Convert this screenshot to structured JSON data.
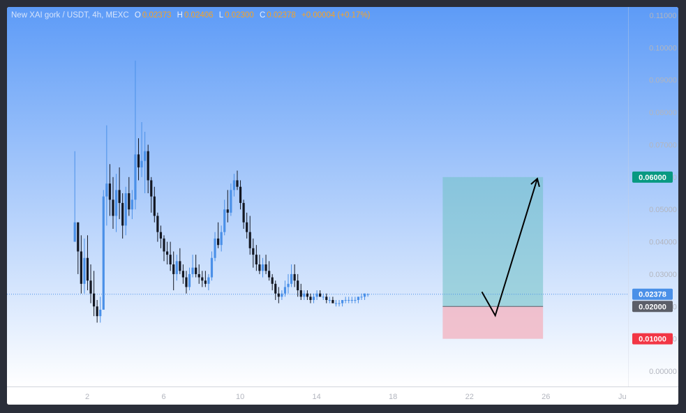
{
  "legend": {
    "symbol": "New XAI gork / USDT, 4h, MEXC",
    "o_label": "O",
    "o_value": "0.02373",
    "h_label": "H",
    "h_value": "0.02406",
    "l_label": "L",
    "l_value": "0.02300",
    "c_label": "C",
    "c_value": "0.02378",
    "change": "+0.00004 (+0.17%)"
  },
  "colors": {
    "background_top": "#5d9bf7",
    "background_bottom": "#ffffff",
    "up_candle": "#4a90e8",
    "down_candle": "#131722",
    "profit_zone": "#6fc1c4",
    "loss_zone": "#f2b8c6",
    "target_tag": "#089981",
    "entry_tag": "#5b5e68",
    "stop_tag": "#f23645",
    "last_price_tag": "#4a90e8",
    "dotted_line": "#4a90e8"
  },
  "chart_data": {
    "type": "candlestick",
    "title": "New XAI gork / USDT, 4h, MEXC",
    "y_ticks": [
      "0.11000",
      "0.10000",
      "0.09000",
      "0.08000",
      "0.07000",
      "0.06000",
      "0.05000",
      "0.04000",
      "0.03000",
      "0.02000",
      "0.01000",
      "0.00000"
    ],
    "ylim": [
      0.0,
      0.11
    ],
    "x_ticks": [
      {
        "label": "2",
        "day": 2
      },
      {
        "label": "6",
        "day": 6
      },
      {
        "label": "10",
        "day": 10
      },
      {
        "label": "14",
        "day": 14
      },
      {
        "label": "18",
        "day": 18
      },
      {
        "label": "22",
        "day": 22
      },
      {
        "label": "26",
        "day": 26
      },
      {
        "label": "Ju",
        "day": 30
      }
    ],
    "xlim": [
      -2.2,
      30.3
    ],
    "candle_hours": 4,
    "candles_start_day": 1.35,
    "candles": [
      [
        0.04,
        0.068,
        0.04,
        0.046
      ],
      [
        0.046,
        0.046,
        0.03,
        0.037
      ],
      [
        0.037,
        0.042,
        0.024,
        0.027
      ],
      [
        0.027,
        0.041,
        0.024,
        0.035
      ],
      [
        0.035,
        0.042,
        0.025,
        0.028
      ],
      [
        0.028,
        0.033,
        0.021,
        0.024
      ],
      [
        0.024,
        0.031,
        0.017,
        0.02
      ],
      [
        0.02,
        0.022,
        0.015,
        0.017
      ],
      [
        0.017,
        0.023,
        0.015,
        0.019
      ],
      [
        0.019,
        0.056,
        0.019,
        0.054
      ],
      [
        0.054,
        0.076,
        0.045,
        0.058
      ],
      [
        0.058,
        0.064,
        0.048,
        0.053
      ],
      [
        0.053,
        0.06,
        0.044,
        0.048
      ],
      [
        0.048,
        0.061,
        0.043,
        0.056
      ],
      [
        0.056,
        0.063,
        0.047,
        0.052
      ],
      [
        0.052,
        0.055,
        0.041,
        0.045
      ],
      [
        0.045,
        0.057,
        0.042,
        0.055
      ],
      [
        0.055,
        0.06,
        0.048,
        0.05
      ],
      [
        0.05,
        0.056,
        0.047,
        0.053
      ],
      [
        0.053,
        0.096,
        0.05,
        0.067
      ],
      [
        0.067,
        0.072,
        0.059,
        0.063
      ],
      [
        0.063,
        0.077,
        0.06,
        0.065
      ],
      [
        0.065,
        0.074,
        0.055,
        0.068
      ],
      [
        0.068,
        0.07,
        0.055,
        0.059
      ],
      [
        0.059,
        0.06,
        0.049,
        0.054
      ],
      [
        0.054,
        0.057,
        0.046,
        0.048
      ],
      [
        0.048,
        0.049,
        0.04,
        0.043
      ],
      [
        0.043,
        0.045,
        0.038,
        0.041
      ],
      [
        0.041,
        0.042,
        0.034,
        0.037
      ],
      [
        0.037,
        0.04,
        0.033,
        0.036
      ],
      [
        0.036,
        0.04,
        0.031,
        0.033
      ],
      [
        0.033,
        0.037,
        0.025,
        0.03
      ],
      [
        0.03,
        0.036,
        0.028,
        0.034
      ],
      [
        0.034,
        0.038,
        0.03,
        0.031
      ],
      [
        0.031,
        0.033,
        0.027,
        0.029
      ],
      [
        0.029,
        0.031,
        0.024,
        0.026
      ],
      [
        0.026,
        0.032,
        0.025,
        0.03
      ],
      [
        0.03,
        0.036,
        0.029,
        0.032
      ],
      [
        0.032,
        0.036,
        0.029,
        0.03
      ],
      [
        0.03,
        0.033,
        0.027,
        0.029
      ],
      [
        0.029,
        0.031,
        0.026,
        0.028
      ],
      [
        0.028,
        0.031,
        0.026,
        0.027
      ],
      [
        0.027,
        0.03,
        0.025,
        0.029
      ],
      [
        0.029,
        0.037,
        0.028,
        0.035
      ],
      [
        0.035,
        0.043,
        0.034,
        0.041
      ],
      [
        0.041,
        0.046,
        0.038,
        0.039
      ],
      [
        0.039,
        0.045,
        0.037,
        0.043
      ],
      [
        0.043,
        0.053,
        0.042,
        0.05
      ],
      [
        0.05,
        0.056,
        0.046,
        0.049
      ],
      [
        0.049,
        0.058,
        0.048,
        0.056
      ],
      [
        0.056,
        0.061,
        0.054,
        0.059
      ],
      [
        0.059,
        0.062,
        0.056,
        0.057
      ],
      [
        0.057,
        0.059,
        0.05,
        0.052
      ],
      [
        0.052,
        0.053,
        0.044,
        0.046
      ],
      [
        0.046,
        0.049,
        0.041,
        0.043
      ],
      [
        0.043,
        0.048,
        0.036,
        0.038
      ],
      [
        0.038,
        0.041,
        0.032,
        0.036
      ],
      [
        0.036,
        0.039,
        0.031,
        0.033
      ],
      [
        0.033,
        0.036,
        0.03,
        0.031
      ],
      [
        0.031,
        0.035,
        0.029,
        0.033
      ],
      [
        0.033,
        0.036,
        0.03,
        0.031
      ],
      [
        0.031,
        0.034,
        0.028,
        0.029
      ],
      [
        0.029,
        0.03,
        0.025,
        0.027
      ],
      [
        0.027,
        0.028,
        0.022,
        0.024
      ],
      [
        0.024,
        0.026,
        0.021,
        0.023
      ],
      [
        0.023,
        0.025,
        0.022,
        0.024
      ],
      [
        0.024,
        0.028,
        0.023,
        0.026
      ],
      [
        0.026,
        0.03,
        0.024,
        0.027
      ],
      [
        0.027,
        0.033,
        0.026,
        0.03
      ],
      [
        0.03,
        0.033,
        0.026,
        0.028
      ],
      [
        0.028,
        0.03,
        0.023,
        0.025
      ],
      [
        0.025,
        0.027,
        0.022,
        0.023
      ],
      [
        0.023,
        0.025,
        0.022,
        0.024
      ],
      [
        0.024,
        0.025,
        0.022,
        0.023
      ],
      [
        0.023,
        0.024,
        0.021,
        0.022
      ],
      [
        0.022,
        0.024,
        0.021,
        0.023
      ],
      [
        0.023,
        0.025,
        0.022,
        0.024
      ],
      [
        0.024,
        0.025,
        0.023,
        0.023
      ],
      [
        0.023,
        0.024,
        0.022,
        0.023
      ],
      [
        0.023,
        0.024,
        0.021,
        0.022
      ],
      [
        0.022,
        0.023,
        0.021,
        0.022
      ],
      [
        0.022,
        0.023,
        0.021,
        0.021
      ],
      [
        0.021,
        0.022,
        0.02,
        0.021
      ],
      [
        0.021,
        0.022,
        0.02,
        0.021
      ],
      [
        0.021,
        0.022,
        0.02,
        0.022
      ],
      [
        0.022,
        0.023,
        0.021,
        0.022
      ],
      [
        0.022,
        0.023,
        0.021,
        0.022
      ],
      [
        0.022,
        0.023,
        0.021,
        0.022
      ],
      [
        0.022,
        0.023,
        0.021,
        0.022
      ],
      [
        0.022,
        0.023,
        0.021,
        0.023
      ],
      [
        0.023,
        0.024,
        0.022,
        0.023
      ],
      [
        0.023,
        0.024,
        0.022,
        0.024
      ],
      [
        0.02373,
        0.02406,
        0.023,
        0.02378
      ]
    ],
    "position": {
      "start_day": 20.6,
      "end_day": 25.85,
      "target": 0.06,
      "entry": 0.02,
      "stop": 0.01
    },
    "projection": [
      {
        "day": 22.65,
        "price": 0.0245
      },
      {
        "day": 23.35,
        "price": 0.0172
      },
      {
        "day": 25.55,
        "price": 0.0595
      }
    ],
    "last_price": 0.02378,
    "price_tags": {
      "target": "0.06000",
      "last": "0.02378",
      "entry": "0.02000",
      "stop": "0.01000"
    }
  }
}
